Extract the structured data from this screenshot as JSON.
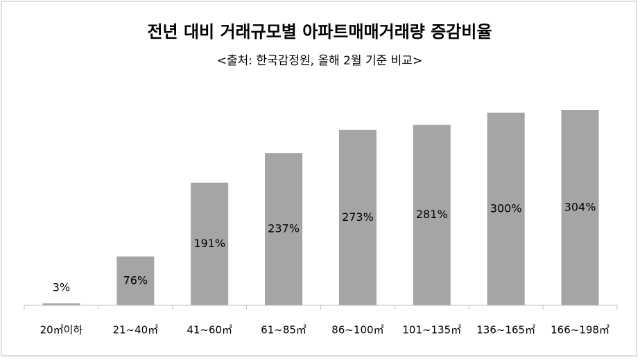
{
  "chart_data": {
    "type": "bar",
    "title": "전년 대비 거래규모별 아파트매매거래량 증감비율",
    "subtitle": "<출처: 한국감정원, 올해 2월 기준 비교>",
    "categories": [
      "20㎡이하",
      "21~40㎡",
      "41~60㎡",
      "61~85㎡",
      "86~100㎡",
      "101~135㎡",
      "136~165㎡",
      "166~198㎡"
    ],
    "values": [
      3,
      76,
      191,
      237,
      273,
      281,
      300,
      304
    ],
    "value_labels": [
      "3%",
      "76%",
      "191%",
      "237%",
      "273%",
      "281%",
      "300%",
      "304%"
    ],
    "color": "#a5a5a5"
  }
}
